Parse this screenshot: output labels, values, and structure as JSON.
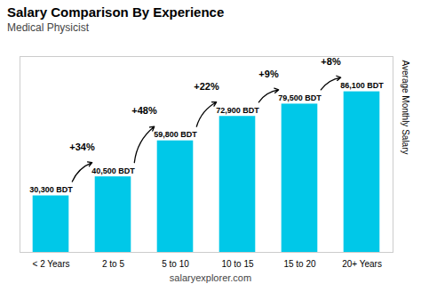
{
  "chart_data": {
    "type": "bar",
    "title": "Salary Comparison By Experience",
    "subtitle": "Medical Physicist",
    "ylabel": "Average Monthly Salary",
    "caption": "salaryexplorer.com",
    "categories": [
      "< 2 Years",
      "2 to 5",
      "5 to 10",
      "10 to 15",
      "15 to 20",
      "20+ Years"
    ],
    "values": [
      30300,
      40500,
      59800,
      72900,
      79500,
      86100
    ],
    "value_labels": [
      "30,300 BDT",
      "40,500 BDT",
      "59,800 BDT",
      "72,900 BDT",
      "79,500 BDT",
      "86,100 BDT"
    ],
    "data_labels": true,
    "annotations": [
      "+34%",
      "+48%",
      "+22%",
      "+9%",
      "+8%"
    ],
    "color": "#00c8e8",
    "ylim": [
      0,
      105000
    ],
    "grid": false,
    "tick_labels": "x"
  }
}
